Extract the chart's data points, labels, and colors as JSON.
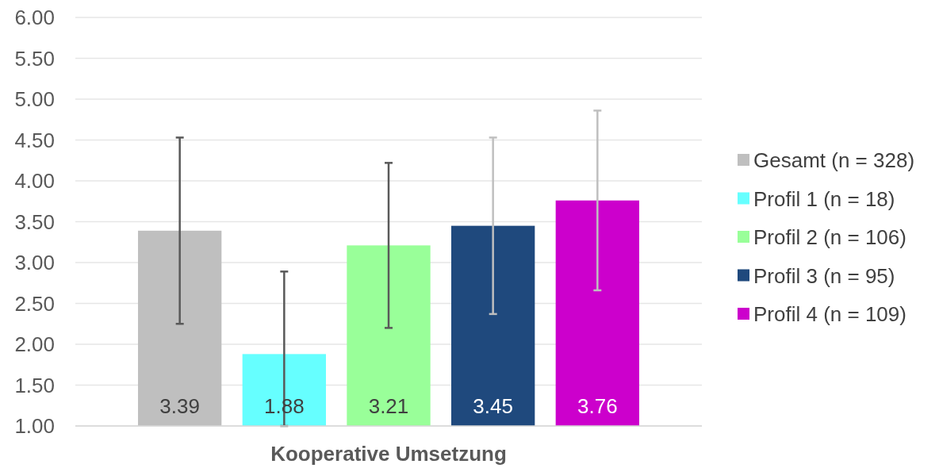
{
  "chart_data": {
    "type": "bar",
    "categories": [
      "Kooperative Umsetzung"
    ],
    "series": [
      {
        "name": "Gesamt (n = 328)",
        "color": "#bfbfbf",
        "values": [
          3.39
        ],
        "errors": [
          [
            2.25,
            4.53
          ]
        ]
      },
      {
        "name": "Profil 1 (n = 18)",
        "color": "#66ffff",
        "values": [
          1.88
        ],
        "errors": [
          [
            1.0,
            2.89
          ]
        ]
      },
      {
        "name": "Profil 2 (n = 106)",
        "color": "#99ff99",
        "values": [
          3.21
        ],
        "errors": [
          [
            2.2,
            4.22
          ]
        ]
      },
      {
        "name": "Profil 3 (n = 95)",
        "color": "#1f497d",
        "values": [
          3.45
        ],
        "errors": [
          [
            2.37,
            4.53
          ]
        ]
      },
      {
        "name": "Profil 4 (n = 109)",
        "color": "#cc00cc",
        "values": [
          3.76
        ],
        "errors": [
          [
            2.66,
            4.86
          ]
        ]
      }
    ],
    "ylim": [
      1,
      6
    ],
    "yticks": [
      {
        "value": 1,
        "label": "1.00"
      },
      {
        "value": 1.5,
        "label": "1.50"
      },
      {
        "value": 2,
        "label": "2.00"
      },
      {
        "value": 2.5,
        "label": "2.50"
      },
      {
        "value": 3,
        "label": "3.00"
      },
      {
        "value": 3.5,
        "label": "3.50"
      },
      {
        "value": 4,
        "label": "4.00"
      },
      {
        "value": 4.5,
        "label": "4.50"
      },
      {
        "value": 5,
        "label": "5.00"
      },
      {
        "value": 5.5,
        "label": "5.50"
      },
      {
        "value": 6,
        "label": "6.00"
      }
    ],
    "grid": "y",
    "legend": "right",
    "data_labels": true
  }
}
